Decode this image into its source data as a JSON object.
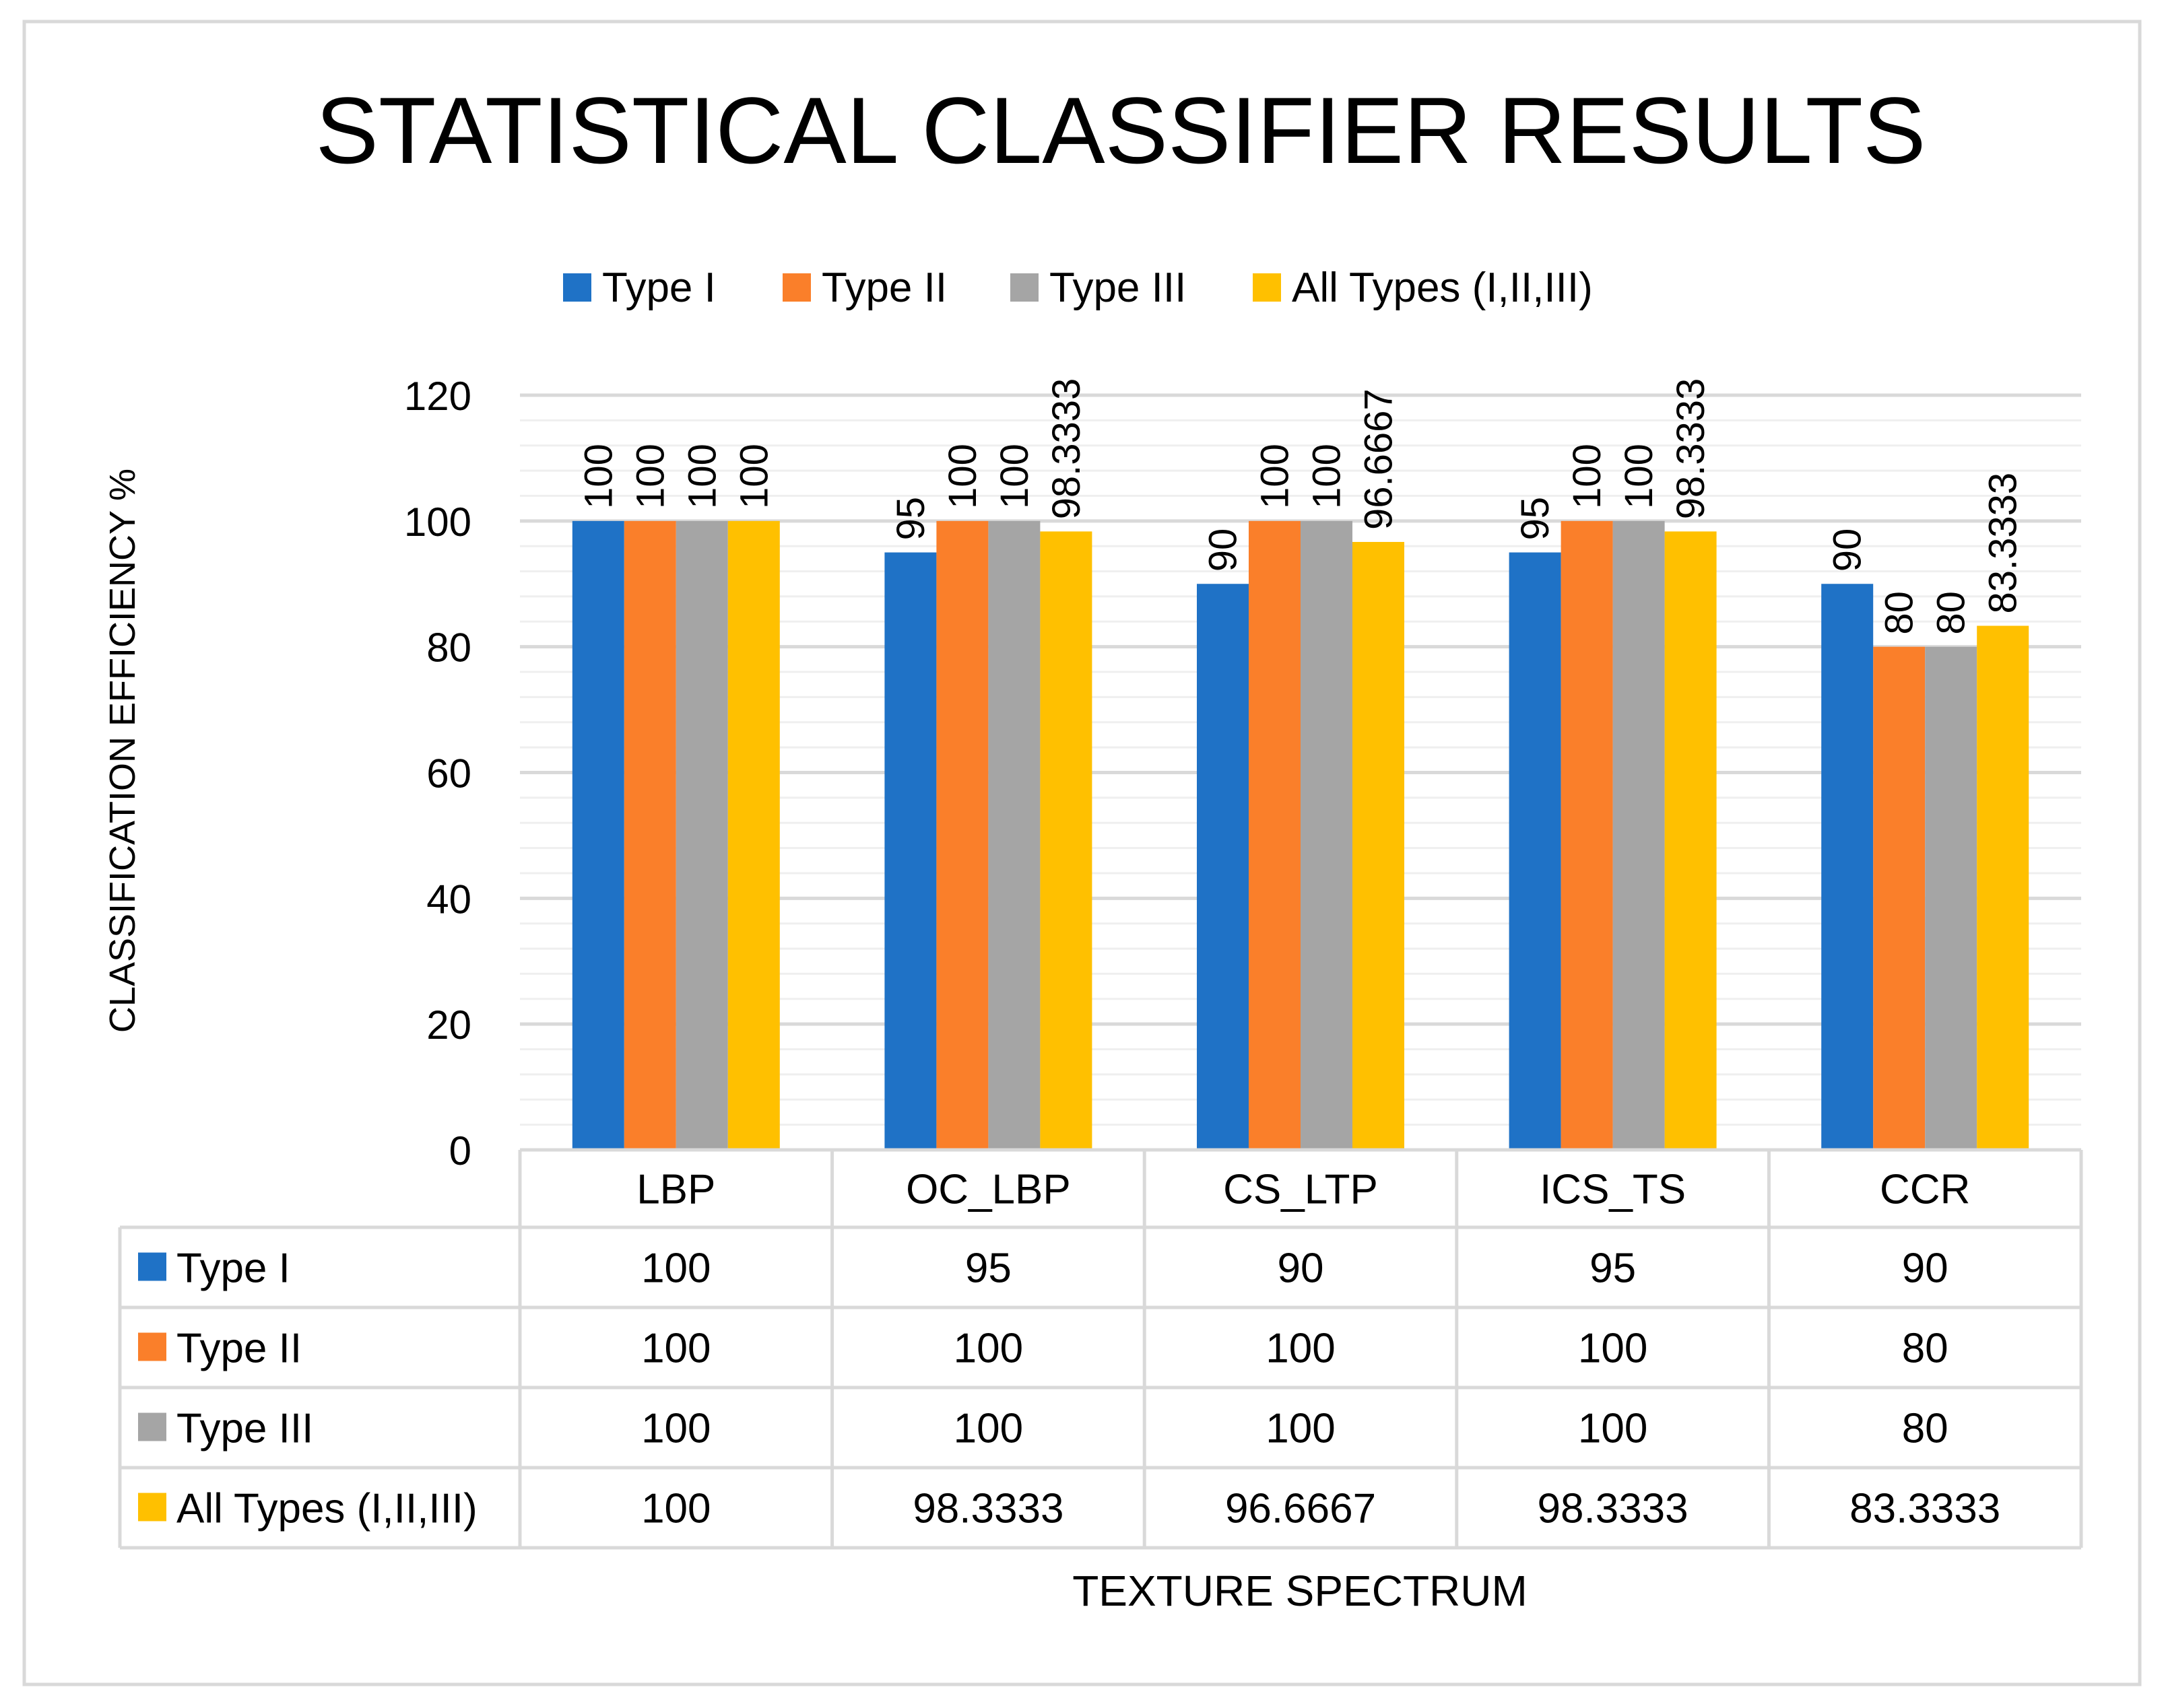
{
  "chart_data": {
    "type": "bar",
    "title": "STATISTICAL CLASSIFIER RESULTS",
    "xlabel": "TEXTURE SPECTRUM",
    "ylabel": "CLASSIFICATION EFFICIENCY %",
    "ylim": [
      0,
      120
    ],
    "yticks": [
      "0",
      "20",
      "40",
      "60",
      "80",
      "100",
      "120"
    ],
    "grid": true,
    "legend_position": "top",
    "categories": [
      "LBP",
      "OC_LBP",
      "CS_LTP",
      "ICS_TS",
      "CCR"
    ],
    "series": [
      {
        "name": "Type I",
        "color": "#1F72C6",
        "values": [
          100,
          95,
          90,
          95,
          90
        ],
        "labels": [
          "100",
          "95",
          "90",
          "95",
          "90"
        ]
      },
      {
        "name": "Type II",
        "color": "#FA7F2A",
        "values": [
          100,
          100,
          100,
          100,
          80
        ],
        "labels": [
          "100",
          "100",
          "100",
          "100",
          "80"
        ]
      },
      {
        "name": "Type III",
        "color": "#A5A5A5",
        "values": [
          100,
          100,
          100,
          100,
          80
        ],
        "labels": [
          "100",
          "100",
          "100",
          "100",
          "80"
        ]
      },
      {
        "name": "All Types (I,II,III)",
        "color": "#FFC000",
        "values": [
          100,
          98.3333,
          96.6667,
          98.3333,
          83.3333
        ],
        "labels": [
          "100",
          "98.3333",
          "96.6667",
          "98.3333",
          "83.3333"
        ]
      }
    ]
  }
}
